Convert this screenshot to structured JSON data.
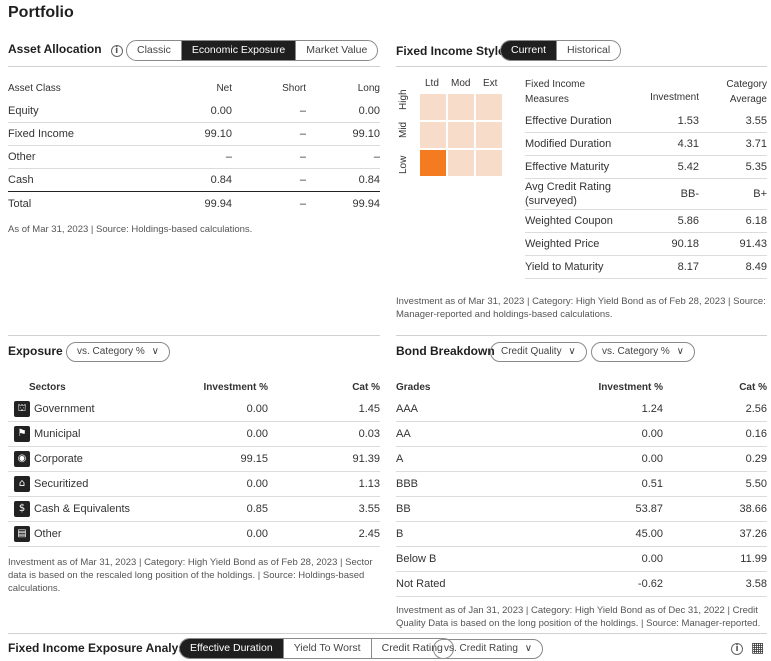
{
  "page_title": "Portfolio",
  "asset_allocation": {
    "title": "Asset Allocation",
    "tabs": [
      "Classic",
      "Economic Exposure",
      "Market Value"
    ],
    "active_tab": 1,
    "headers": [
      "Asset Class",
      "Net",
      "Short",
      "Long"
    ],
    "rows": [
      {
        "name": "Equity",
        "net": "0.00",
        "short": "–",
        "long": "0.00"
      },
      {
        "name": "Fixed Income",
        "net": "99.10",
        "short": "–",
        "long": "99.10"
      },
      {
        "name": "Other",
        "net": "–",
        "short": "–",
        "long": "–"
      },
      {
        "name": "Cash",
        "net": "0.84",
        "short": "–",
        "long": "0.84"
      }
    ],
    "total": {
      "name": "Total",
      "net": "99.94",
      "short": "–",
      "long": "99.94"
    },
    "note": "As of Mar 31, 2023 | Source: Holdings-based calculations."
  },
  "fixed_income_style": {
    "title": "Fixed Income Style",
    "tabs": [
      "Current",
      "Historical"
    ],
    "active_tab": 0,
    "col_labels": [
      "Ltd",
      "Mod",
      "Ext"
    ],
    "row_labels": [
      "High",
      "Mid",
      "Low"
    ],
    "selected": {
      "row": 2,
      "col": 0
    },
    "headers": {
      "measure": "Fixed Income Measures",
      "investment": "Investment",
      "category": "Category Average"
    },
    "rows": [
      {
        "name": "Effective Duration",
        "inv": "1.53",
        "cat": "3.55"
      },
      {
        "name": "Modified Duration",
        "inv": "4.31",
        "cat": "3.71"
      },
      {
        "name": "Effective Maturity",
        "inv": "5.42",
        "cat": "5.35"
      },
      {
        "name": "Avg Credit Rating (surveyed)",
        "inv": "BB-",
        "cat": "B+"
      },
      {
        "name": "Weighted Coupon",
        "inv": "5.86",
        "cat": "6.18"
      },
      {
        "name": "Weighted Price",
        "inv": "90.18",
        "cat": "91.43"
      },
      {
        "name": "Yield to Maturity",
        "inv": "8.17",
        "cat": "8.49"
      }
    ],
    "note": "Investment as of Mar 31, 2023 | Category: High Yield Bond as of Feb 28, 2023 | Source: Manager-reported and holdings-based calculations."
  },
  "exposure": {
    "title": "Exposure",
    "dropdown": "vs. Category %",
    "headers": [
      "Sectors",
      "Investment %",
      "Cat %"
    ],
    "rows": [
      {
        "name": "Government",
        "icon": "government-icon",
        "glyph": "⛫",
        "inv": "0.00",
        "cat": "1.45"
      },
      {
        "name": "Municipal",
        "icon": "municipal-icon",
        "glyph": "⚑",
        "inv": "0.00",
        "cat": "0.03"
      },
      {
        "name": "Corporate",
        "icon": "corporate-icon",
        "glyph": "◉",
        "inv": "99.15",
        "cat": "91.39"
      },
      {
        "name": "Securitized",
        "icon": "securitized-icon",
        "glyph": "⌂",
        "inv": "0.00",
        "cat": "1.13"
      },
      {
        "name": "Cash & Equivalents",
        "icon": "cash-icon",
        "glyph": "$",
        "inv": "0.85",
        "cat": "3.55"
      },
      {
        "name": "Other",
        "icon": "other-icon",
        "glyph": "▤",
        "inv": "0.00",
        "cat": "2.45"
      }
    ],
    "note": "Investment as of Mar 31, 2023 | Category: High Yield Bond as of Feb 28, 2023 | Sector data is based on the rescaled long position of the holdings. | Source: Holdings-based calculations."
  },
  "bond_breakdown": {
    "title": "Bond Breakdown",
    "dropdown1": "Credit Quality",
    "dropdown2": "vs. Category %",
    "headers": [
      "Grades",
      "Investment %",
      "Cat %"
    ],
    "rows": [
      {
        "name": "AAA",
        "inv": "1.24",
        "cat": "2.56"
      },
      {
        "name": "AA",
        "inv": "0.00",
        "cat": "0.16"
      },
      {
        "name": "A",
        "inv": "0.00",
        "cat": "0.29"
      },
      {
        "name": "BBB",
        "inv": "0.51",
        "cat": "5.50"
      },
      {
        "name": "BB",
        "inv": "53.87",
        "cat": "38.66"
      },
      {
        "name": "B",
        "inv": "45.00",
        "cat": "37.26"
      },
      {
        "name": "Below B",
        "inv": "0.00",
        "cat": "11.99"
      },
      {
        "name": "Not Rated",
        "inv": "-0.62",
        "cat": "3.58"
      }
    ],
    "note": "Investment as of Jan 31, 2023 | Category: High Yield Bond as of Dec 31, 2022 | Credit Quality Data is based on the long position of the holdings. | Source: Manager-reported."
  },
  "fixed_income_exposure": {
    "title": "Fixed Income Exposure Analysis",
    "tabs": [
      "Effective Duration",
      "Yield To Worst",
      "Credit Rating"
    ],
    "active_tab": 0,
    "dropdown": "vs. Credit Rating"
  },
  "colors": {
    "accent": "#f47b20",
    "style_box_light": "#f7dcca",
    "active_tab": "#1f1f1f"
  }
}
